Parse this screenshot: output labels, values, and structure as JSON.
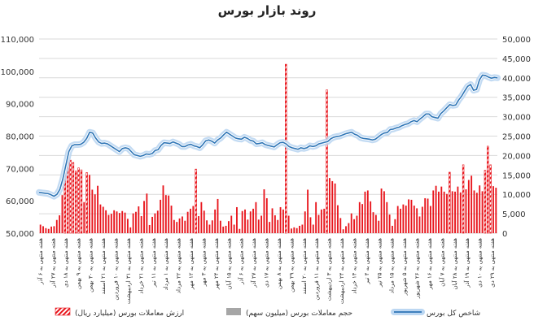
{
  "chart_data": {
    "type": "bar+line",
    "title": "روند بازار بورس",
    "left_axis": {
      "min": 50000,
      "max": 110000,
      "ticks": [
        "50,000",
        "60,000",
        "70,000",
        "80,000",
        "90,000",
        "100,000",
        "110,000"
      ]
    },
    "right_axis": {
      "min": 0,
      "max": 50000,
      "ticks": [
        "0",
        "5,000",
        "10,000",
        "15,000",
        "20,000",
        "25,000",
        "30,000",
        "35,000",
        "40,000",
        "45,000",
        "50,000"
      ]
    },
    "x_labels": [
      "هفته منتهی به ۶ آذر",
      "هفته منتهی به ۲۷ آذر",
      "هفته منتهی به ۱۸ دی",
      "هفته منتهی به ۹ بهمن",
      "هفته منتهی به ۳۰ بهمن",
      "هفته منتهی به ۲۱ اسفند",
      "هفته منتهی به ۱۰ فروردین",
      "هفته منتهی به ۳۱ اردیبهشت",
      "هفته منتهی به ۲۱ خرداد",
      "هفته منتهی به ۱۱ تیر",
      "هفته منتهی به ۱ مرداد",
      "هفته منتهی به ۲۲ مرداد",
      "هفته منتهی به ۱۲ مهر",
      "هفته منتهی به ۳ مهر",
      "هفته منتهی به ۲۴ مهر",
      "هفته منتهی به ۱۵ آبان",
      "هفته منتهی به ۶ آذر",
      "هفته منتهی به ۲۷ آذر",
      "هفته منتهی به ۱۷ دی",
      "هفته منتهی به ۸ بهمن",
      "هفته منتهی به ۲۹ بهمن",
      "هفته منتهی به ۲۰ اسفند",
      "هفته منتهی به ۱۱ فروردین",
      "هفته منتهی به ۳ اردیبهشت",
      "هفته منتهی به ۲۴ اردیبهشت",
      "هفته منتهی به ۱۴ خرداد",
      "هفته منتهی به ۴ تیر",
      "هفته منتهی به ۲۵ تیر",
      "هفته منتهی به ۱۵ مرداد",
      "هفته منتهی به ۵ شهریور",
      "هفته منتهی به ۲۶ شهریور",
      "هفته منتهی به ۱۶ مهر",
      "هفته منتهی به ۷ آبان",
      "هفته منتهی به ۲۸ آبان",
      "هفته منتهی به ۱۹ آذر",
      "هفته منتهی به ۱۰ دی",
      "هفته منتهی به ۲۹ دی"
    ],
    "series": [
      {
        "name": "ارزش معاملات بورس (میلیارد ریال)",
        "axis": "right",
        "color": "#e8141b",
        "values": [
          2200,
          1800,
          1300,
          1100,
          1700,
          1800,
          3400,
          4600,
          9800,
          16000,
          19800,
          18800,
          18200,
          16000,
          16800,
          16300,
          8000,
          15600,
          15000,
          11200,
          10000,
          12200,
          7400,
          6800,
          5900,
          4700,
          5000,
          5900,
          5600,
          5200,
          5700,
          5300,
          3700,
          1500,
          5100,
          5500,
          6900,
          4400,
          8300,
          10200,
          2100,
          4200,
          5100,
          5800,
          8600,
          12300,
          9800,
          9700,
          7100,
          3400,
          2900,
          3800,
          4300,
          3200,
          5500,
          6300,
          7000,
          16500,
          4400,
          8000,
          5800,
          3300,
          2200,
          3300,
          6100,
          8800,
          3200,
          1700,
          1900,
          3100,
          4500,
          2200,
          6700,
          1100,
          5700,
          6100,
          3500,
          5600,
          6300,
          8000,
          3500,
          4500,
          11300,
          9000,
          2900,
          6400,
          4600,
          3400,
          6700,
          6100,
          43500,
          4500,
          1200,
          1500,
          1300,
          1900,
          2200,
          5600,
          11200,
          4100,
          2200,
          8000,
          4700,
          6100,
          6300,
          36900,
          14200,
          13400,
          12800,
          7200,
          3900,
          1000,
          1800,
          2600,
          5100,
          3600,
          4500,
          8000,
          7500,
          10700,
          11000,
          8200,
          5400,
          4700,
          3200,
          11500,
          10800,
          8000,
          4800,
          1900,
          3600,
          7000,
          6300,
          7400,
          7100,
          8700,
          8600,
          7100,
          6400,
          4300,
          6800,
          9000,
          8900,
          7000,
          11000,
          12200,
          10700,
          12000,
          10700,
          10100,
          15700,
          10800,
          10700,
          12000,
          10500,
          17600,
          11300,
          13700,
          14800,
          11000,
          10400,
          12300,
          10800,
          16200,
          22400,
          17600,
          12100,
          11700
        ]
      },
      {
        "name": "حجم معاملات بورس (میلیون سهم)",
        "axis": "right",
        "color": "#a6a6a6",
        "values": []
      },
      {
        "name": "شاخص کل بورس",
        "axis": "right",
        "color": "#2e75b6",
        "values": [
          10500,
          10400,
          10300,
          10200,
          9900,
          9500,
          10000,
          11300,
          14000,
          17500,
          21000,
          22500,
          22800,
          22800,
          22900,
          23400,
          24400,
          26000,
          25800,
          24500,
          23500,
          23100,
          23200,
          23000,
          22500,
          22000,
          21500,
          21000,
          21800,
          22000,
          21800,
          21000,
          20200,
          20000,
          19800,
          20000,
          20400,
          20300,
          20500,
          21300,
          21500,
          22600,
          23300,
          23200,
          23100,
          23500,
          23200,
          22900,
          22300,
          22300,
          22700,
          22900,
          22500,
          22300,
          22000,
          22800,
          23800,
          24000,
          23700,
          23200,
          24000,
          24500,
          25300,
          26000,
          25500,
          25000,
          24500,
          24300,
          24200,
          24700,
          24400,
          23900,
          23700,
          23000,
          23100,
          23300,
          22800,
          22600,
          22400,
          22200,
          22800,
          23300,
          23400,
          23000,
          22300,
          22000,
          21800,
          21600,
          22000,
          21800,
          22000,
          22500,
          22300,
          22500,
          23000,
          23200,
          23400,
          23600,
          24300,
          24700,
          24900,
          25000,
          25300,
          25600,
          25800,
          26000,
          25500,
          25200,
          24600,
          24400,
          24300,
          24200,
          24000,
          24200,
          24800,
          25400,
          25800,
          25900,
          26700,
          26800,
          27100,
          27300,
          27700,
          28000,
          28200,
          28700,
          29000,
          28700,
          29400,
          30000,
          30700,
          30700,
          30000,
          29800,
          29600,
          30800,
          31500,
          32300,
          33100,
          32900,
          33000,
          34300,
          35300,
          36600,
          37800,
          38300,
          36800,
          37000,
          39500,
          40700,
          40600,
          40200,
          39900,
          40100,
          40000
        ]
      }
    ],
    "legend": [
      {
        "label": "ارزش معاملات بورس (میلیارد ریال)",
        "swatch": "hatched-red"
      },
      {
        "label": "حجم معاملات بورس (میلیون سهم)",
        "swatch": "gray"
      },
      {
        "label": "شاخص کل بورس",
        "swatch": "blue-line"
      }
    ]
  }
}
